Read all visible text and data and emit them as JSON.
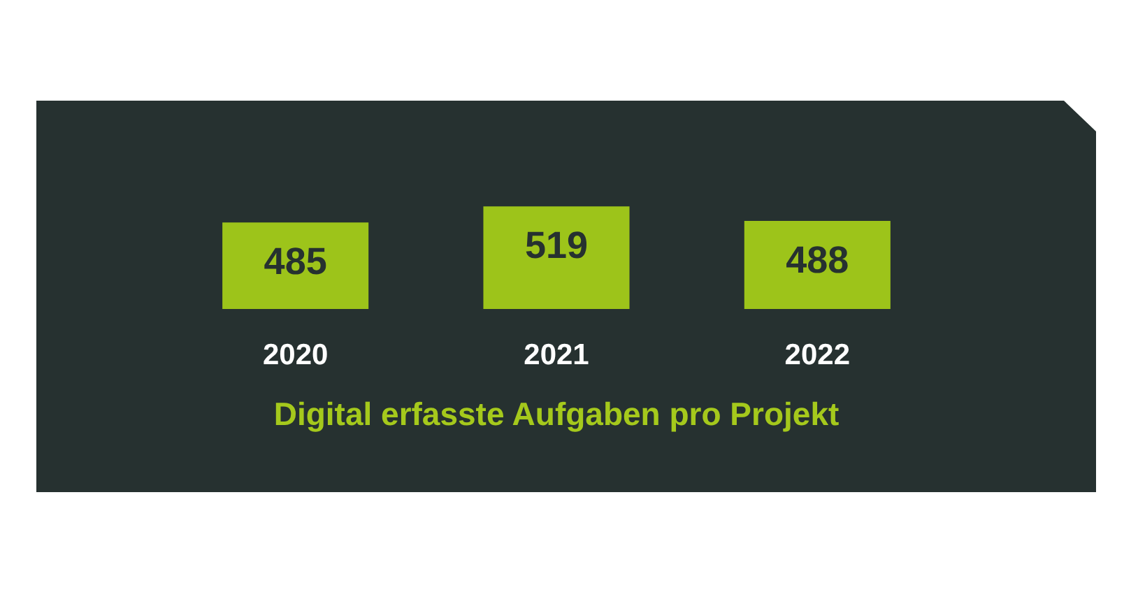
{
  "chart_data": {
    "type": "bar",
    "title": "Digital erfasste Aufgaben pro Projekt",
    "categories": [
      "2020",
      "2021",
      "2022"
    ],
    "values": [
      485,
      519,
      488
    ],
    "color": "#9dc41a",
    "ylim": [
      300,
      530
    ],
    "data_labels": true
  }
}
